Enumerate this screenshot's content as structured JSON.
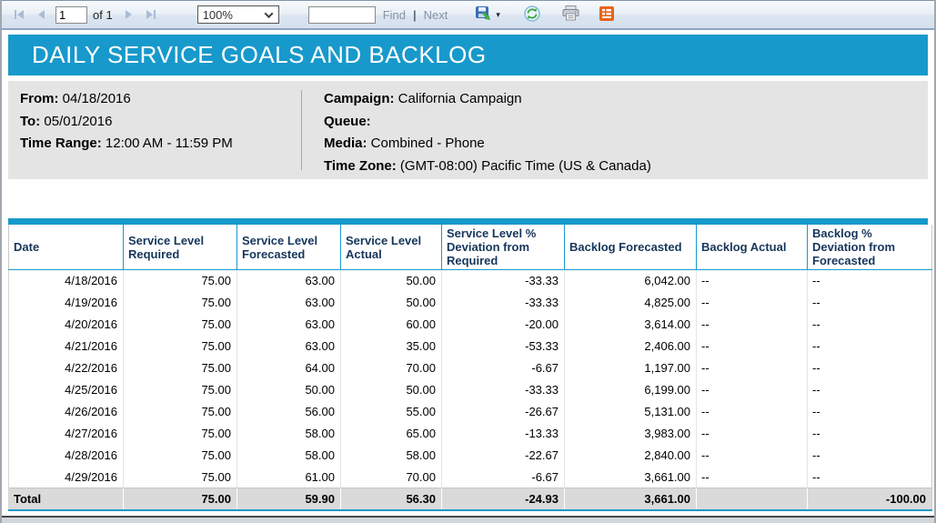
{
  "toolbar": {
    "page_current": "1",
    "page_of_label": "of 1",
    "zoom_value": "100%",
    "find_value": "",
    "find_label": "Find",
    "separator": "|",
    "next_label": "Next"
  },
  "icons": {
    "first_page": "bar-with-left-triangle",
    "previous_page": "left-triangle",
    "next_page": "right-triangle",
    "last_page": "right-triangle-with-bar",
    "zoom_chevron": "chevron-down",
    "export": "floppy-disk-with-green-arrow",
    "export_caret": "caret-down",
    "refresh": "circular-green-arrows",
    "print": "printer",
    "data_feed": "orange-report-lines"
  },
  "report": {
    "title": "DAILY SERVICE GOALS AND BACKLOG",
    "params_left": [
      {
        "label": "From:",
        "value": "04/18/2016"
      },
      {
        "label": "To:",
        "value": "05/01/2016"
      },
      {
        "label": "Time Range:",
        "value": "12:00 AM - 11:59 PM"
      }
    ],
    "params_right": [
      {
        "label": "Campaign:",
        "value": "California Campaign"
      },
      {
        "label": "Queue:",
        "value": ""
      },
      {
        "label": "Media:",
        "value": "Combined - Phone"
      },
      {
        "label": "Time Zone:",
        "value": "(GMT-08:00) Pacific Time (US & Canada)"
      }
    ]
  },
  "table": {
    "columns": [
      "Date",
      "Service Level Required",
      "Service Level Forecasted",
      "Service Level Actual",
      "Service Level % Deviation from Required",
      "Backlog Forecasted",
      "Backlog Actual",
      "Backlog % Deviation from Forecasted"
    ],
    "rows": [
      [
        "4/18/2016",
        "75.00",
        "63.00",
        "50.00",
        "-33.33",
        "6,042.00",
        "--",
        "--"
      ],
      [
        "4/19/2016",
        "75.00",
        "63.00",
        "50.00",
        "-33.33",
        "4,825.00",
        "--",
        "--"
      ],
      [
        "4/20/2016",
        "75.00",
        "63.00",
        "60.00",
        "-20.00",
        "3,614.00",
        "--",
        "--"
      ],
      [
        "4/21/2016",
        "75.00",
        "63.00",
        "35.00",
        "-53.33",
        "2,406.00",
        "--",
        "--"
      ],
      [
        "4/22/2016",
        "75.00",
        "64.00",
        "70.00",
        "-6.67",
        "1,197.00",
        "--",
        "--"
      ],
      [
        "4/25/2016",
        "75.00",
        "50.00",
        "50.00",
        "-33.33",
        "6,199.00",
        "--",
        "--"
      ],
      [
        "4/26/2016",
        "75.00",
        "56.00",
        "55.00",
        "-26.67",
        "5,131.00",
        "--",
        "--"
      ],
      [
        "4/27/2016",
        "75.00",
        "58.00",
        "65.00",
        "-13.33",
        "3,983.00",
        "--",
        "--"
      ],
      [
        "4/28/2016",
        "75.00",
        "58.00",
        "58.00",
        "-22.67",
        "2,840.00",
        "--",
        "--"
      ],
      [
        "4/29/2016",
        "75.00",
        "61.00",
        "70.00",
        "-6.67",
        "3,661.00",
        "--",
        "--"
      ]
    ],
    "total": {
      "label": "Total",
      "values": [
        "75.00",
        "59.90",
        "56.30",
        "-24.93",
        "3,661.00",
        "",
        "-100.00"
      ]
    }
  },
  "colors": {
    "accent_teal": "#1899CB",
    "header_text": "#16365C",
    "panel_bg": "#E4E4E4",
    "total_row_bg": "#DADADA",
    "toolbar_link": "#8593A4",
    "disabled_arrow": "#A9BCD6",
    "data_feed_orange": "#E8641B"
  }
}
